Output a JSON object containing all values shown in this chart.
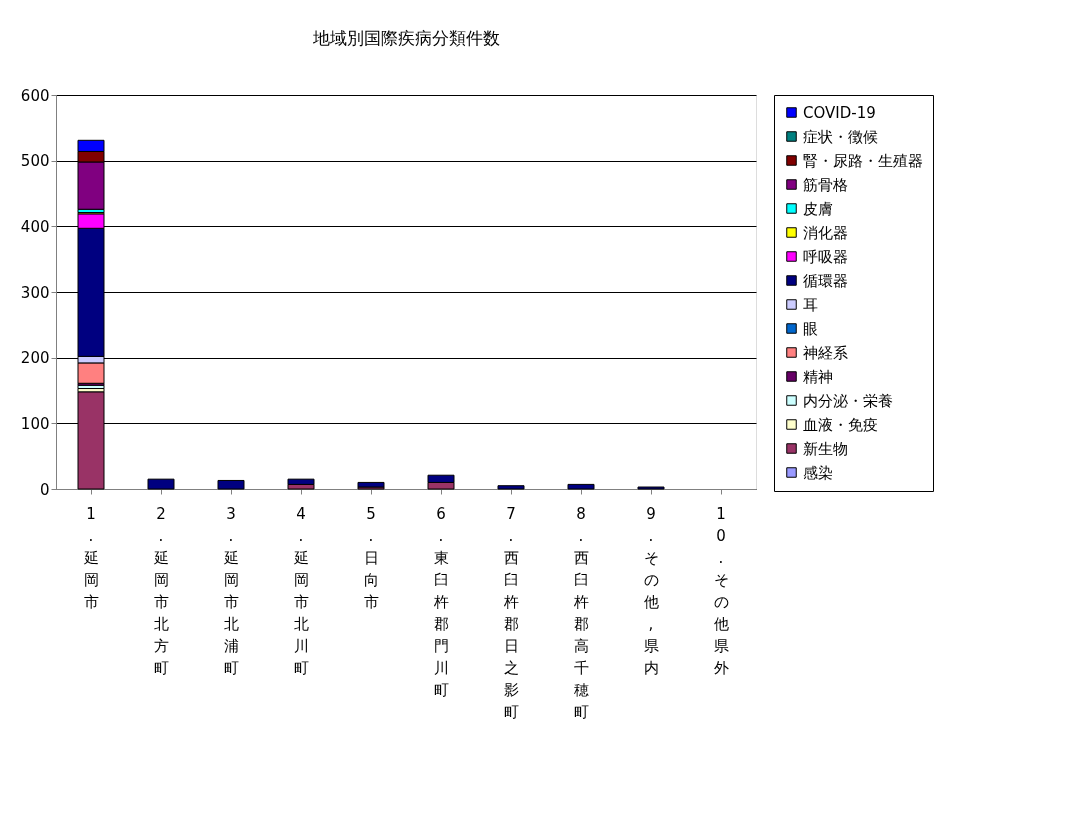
{
  "chart_data": {
    "type": "bar",
    "stacked": true,
    "title": "地域別国際疾病分類件数",
    "categories": [
      "1.延岡市",
      "2.延岡市北方町",
      "3.延岡市北浦町",
      "4.延岡市北川町",
      "5.日向市",
      "6.東臼杵郡門川町",
      "7.西臼杵郡日之影町",
      "8.西臼杵郡高千穂町",
      "9.その他,県内",
      "10.その他県外"
    ],
    "series": [
      {
        "name": "感染",
        "color": "#9999ff",
        "values": [
          0,
          0,
          0,
          0,
          0,
          0,
          0,
          0,
          0,
          0
        ]
      },
      {
        "name": "新生物",
        "color": "#993366",
        "values": [
          148,
          0,
          0,
          7,
          3,
          10,
          0,
          0,
          0,
          0
        ]
      },
      {
        "name": "血液・免疫",
        "color": "#ffffcc",
        "values": [
          5,
          0,
          0,
          0,
          0,
          0,
          0,
          0,
          0,
          0
        ]
      },
      {
        "name": "内分泌・栄養",
        "color": "#ccffff",
        "values": [
          5,
          0,
          0,
          0,
          0,
          0,
          0,
          0,
          0,
          0
        ]
      },
      {
        "name": "精神",
        "color": "#660066",
        "values": [
          3,
          0,
          0,
          0,
          0,
          0,
          0,
          0,
          0,
          0
        ]
      },
      {
        "name": "神経系",
        "color": "#ff8080",
        "values": [
          31,
          0,
          0,
          0,
          0,
          0,
          0,
          0,
          0,
          0
        ]
      },
      {
        "name": "眼",
        "color": "#0066cc",
        "values": [
          0,
          0,
          0,
          0,
          0,
          0,
          0,
          0,
          0,
          0
        ]
      },
      {
        "name": "耳",
        "color": "#ccccff",
        "values": [
          10,
          0,
          0,
          0,
          0,
          0,
          0,
          0,
          0,
          0
        ]
      },
      {
        "name": "循環器",
        "color": "#000080",
        "values": [
          195,
          15,
          13,
          8,
          7,
          11,
          5,
          7,
          3,
          0
        ]
      },
      {
        "name": "呼吸器",
        "color": "#ff00ff",
        "values": [
          22,
          0,
          0,
          0,
          0,
          0,
          0,
          0,
          0,
          0
        ]
      },
      {
        "name": "消化器",
        "color": "#ffff00",
        "values": [
          2,
          0,
          0,
          0,
          0,
          0,
          0,
          0,
          0,
          0
        ]
      },
      {
        "name": "皮膚",
        "color": "#00ffff",
        "values": [
          5,
          0,
          0,
          0,
          0,
          0,
          0,
          0,
          0,
          0
        ]
      },
      {
        "name": "筋骨格",
        "color": "#800080",
        "values": [
          72,
          0,
          0,
          0,
          0,
          0,
          0,
          0,
          0,
          0
        ]
      },
      {
        "name": "腎・尿路・生殖器",
        "color": "#800000",
        "values": [
          16,
          0,
          0,
          0,
          0,
          0,
          0,
          0,
          0,
          0
        ]
      },
      {
        "name": "症状・徴候",
        "color": "#008080",
        "values": [
          0,
          0,
          0,
          0,
          0,
          0,
          0,
          0,
          0,
          0
        ]
      },
      {
        "name": "COVID-19",
        "color": "#0000ff",
        "values": [
          17,
          0,
          0,
          0,
          0,
          0,
          0,
          0,
          0,
          0
        ]
      }
    ],
    "ylim": [
      0,
      600
    ],
    "yticks": [
      0,
      100,
      200,
      300,
      400,
      500,
      600
    ],
    "grid": "y",
    "legend": "right"
  }
}
